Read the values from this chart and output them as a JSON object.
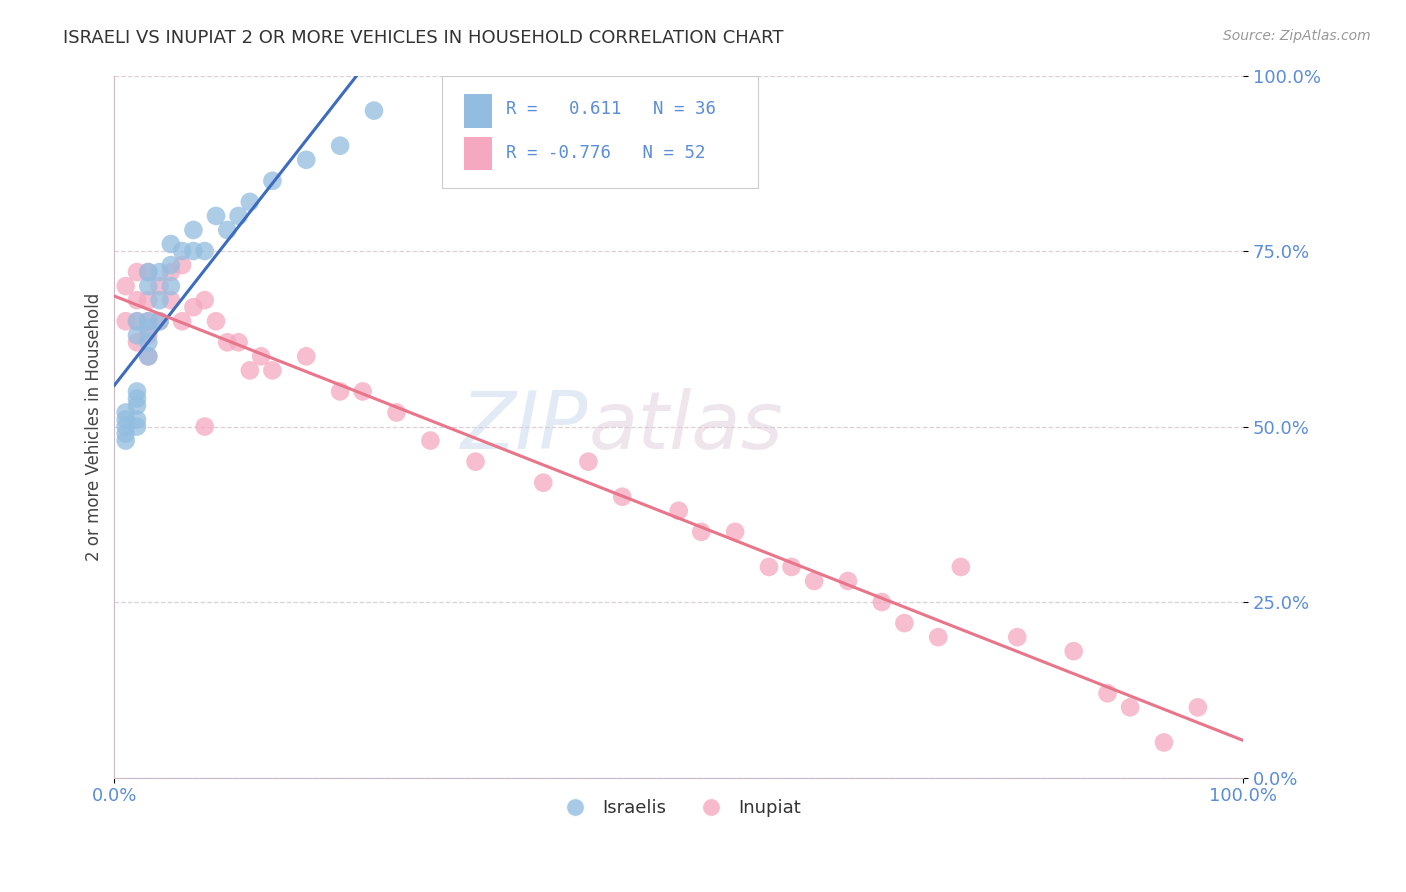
{
  "title": "ISRAELI VS INUPIAT 2 OR MORE VEHICLES IN HOUSEHOLD CORRELATION CHART",
  "source": "Source: ZipAtlas.com",
  "ylabel": "2 or more Vehicles in Household",
  "watermark_zip": "ZIP",
  "watermark_atlas": "atlas",
  "xlim": [
    0.0,
    1.0
  ],
  "ylim": [
    0.0,
    1.0
  ],
  "xtick_labels": [
    "0.0%",
    "100.0%"
  ],
  "xtick_vals": [
    0.0,
    1.0
  ],
  "ytick_labels": [
    "0.0%",
    "25.0%",
    "50.0%",
    "75.0%",
    "100.0%"
  ],
  "ytick_vals": [
    0.0,
    0.25,
    0.5,
    0.75,
    1.0
  ],
  "israeli_R": 0.611,
  "israeli_N": 36,
  "inupiat_R": -0.776,
  "inupiat_N": 52,
  "israeli_color": "#92bde0",
  "inupiat_color": "#f5a8c0",
  "trendline_israeli_color": "#3c6bbf",
  "trendline_inupiat_color": "#e8758a",
  "grid_color": "#ddd0d8",
  "background_color": "#ffffff",
  "israeli_x": [
    0.01,
    0.01,
    0.01,
    0.01,
    0.01,
    0.02,
    0.02,
    0.02,
    0.02,
    0.02,
    0.02,
    0.02,
    0.03,
    0.03,
    0.03,
    0.03,
    0.03,
    0.03,
    0.04,
    0.04,
    0.04,
    0.05,
    0.05,
    0.05,
    0.06,
    0.07,
    0.07,
    0.08,
    0.09,
    0.1,
    0.11,
    0.12,
    0.14,
    0.17,
    0.2,
    0.23
  ],
  "israeli_y": [
    0.48,
    0.49,
    0.5,
    0.51,
    0.52,
    0.5,
    0.51,
    0.53,
    0.54,
    0.55,
    0.63,
    0.65,
    0.6,
    0.62,
    0.64,
    0.65,
    0.7,
    0.72,
    0.65,
    0.68,
    0.72,
    0.7,
    0.73,
    0.76,
    0.75,
    0.75,
    0.78,
    0.75,
    0.8,
    0.78,
    0.8,
    0.82,
    0.85,
    0.88,
    0.9,
    0.95
  ],
  "inupiat_x": [
    0.01,
    0.01,
    0.02,
    0.02,
    0.02,
    0.02,
    0.03,
    0.03,
    0.03,
    0.03,
    0.03,
    0.04,
    0.04,
    0.05,
    0.05,
    0.06,
    0.06,
    0.07,
    0.08,
    0.08,
    0.09,
    0.1,
    0.11,
    0.12,
    0.13,
    0.14,
    0.17,
    0.2,
    0.22,
    0.25,
    0.28,
    0.32,
    0.38,
    0.42,
    0.45,
    0.5,
    0.52,
    0.55,
    0.58,
    0.6,
    0.62,
    0.65,
    0.68,
    0.7,
    0.73,
    0.75,
    0.8,
    0.85,
    0.88,
    0.9,
    0.93,
    0.96
  ],
  "inupiat_y": [
    0.65,
    0.7,
    0.62,
    0.65,
    0.68,
    0.72,
    0.6,
    0.63,
    0.65,
    0.68,
    0.72,
    0.65,
    0.7,
    0.68,
    0.72,
    0.65,
    0.73,
    0.67,
    0.5,
    0.68,
    0.65,
    0.62,
    0.62,
    0.58,
    0.6,
    0.58,
    0.6,
    0.55,
    0.55,
    0.52,
    0.48,
    0.45,
    0.42,
    0.45,
    0.4,
    0.38,
    0.35,
    0.35,
    0.3,
    0.3,
    0.28,
    0.28,
    0.25,
    0.22,
    0.2,
    0.3,
    0.2,
    0.18,
    0.12,
    0.1,
    0.05,
    0.1
  ]
}
